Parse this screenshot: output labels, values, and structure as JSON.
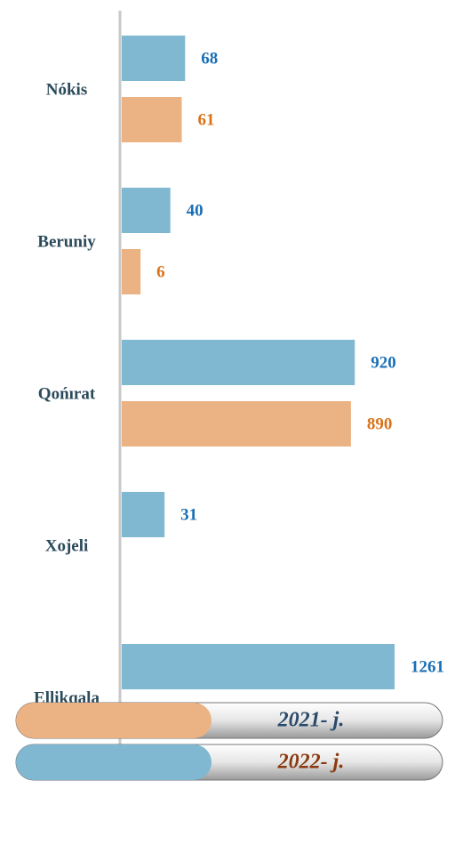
{
  "chart_data": {
    "type": "bar",
    "orientation": "horizontal",
    "categories": [
      "Nókis",
      "Beruniy",
      "Qońırat",
      "Xojeli",
      "Ellikqala"
    ],
    "series": [
      {
        "name": "2021- j.",
        "color": "#ebb384",
        "label_color": "#d9731a",
        "legend_text_color": "#2b4a6b",
        "values": [
          61,
          6,
          890,
          null,
          null
        ]
      },
      {
        "name": "2022- j.",
        "color": "#7fb8d0",
        "label_color": "#1a6fb5",
        "legend_text_color": "#8b3a0f",
        "values": [
          68,
          40,
          920,
          31,
          1261
        ]
      }
    ]
  }
}
